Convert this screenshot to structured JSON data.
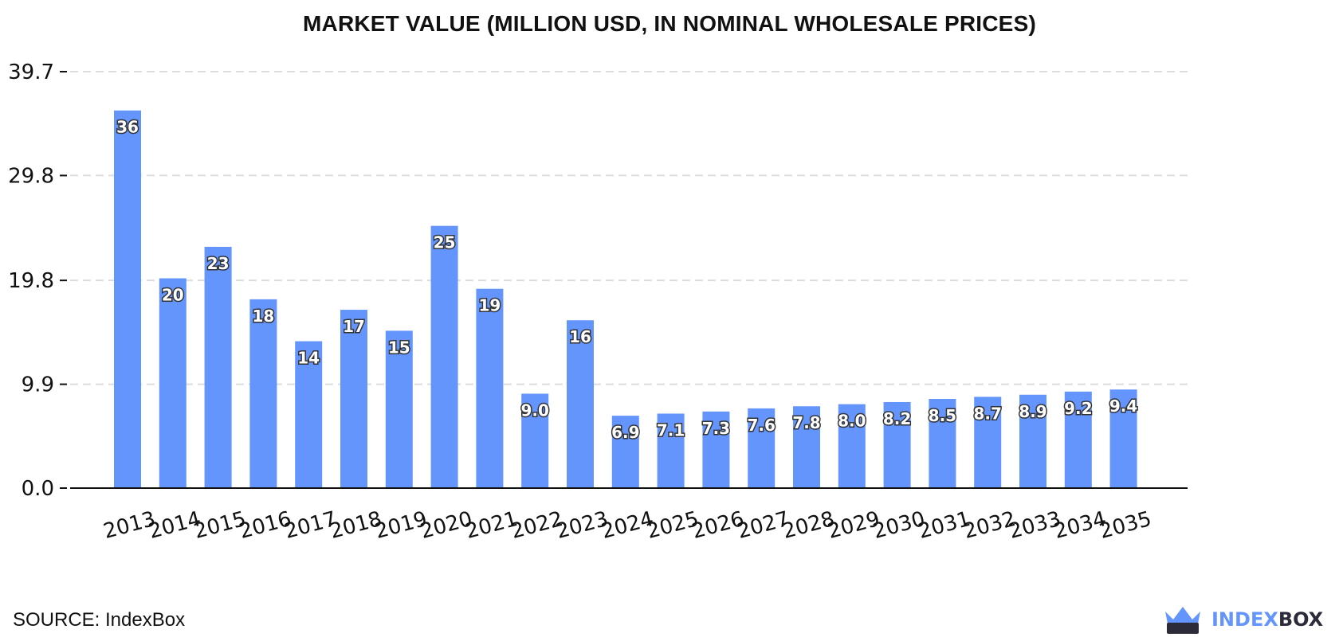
{
  "chart_data": {
    "type": "bar",
    "title": "MARKET VALUE (MILLION USD, IN NOMINAL WHOLESALE PRICES)",
    "xlabel": "",
    "ylabel": "",
    "categories": [
      "2013",
      "2014",
      "2015",
      "2016",
      "2017",
      "2018",
      "2019",
      "2020",
      "2021",
      "2022",
      "2023",
      "2024",
      "2025",
      "2026",
      "2027",
      "2028",
      "2029",
      "2030",
      "2031",
      "2032",
      "2033",
      "2034",
      "2035"
    ],
    "values": [
      36,
      20,
      23,
      18,
      14,
      17,
      15,
      25,
      19,
      9.0,
      16,
      6.9,
      7.1,
      7.3,
      7.6,
      7.8,
      8.0,
      8.2,
      8.5,
      8.7,
      8.9,
      9.2,
      9.4
    ],
    "value_labels": [
      "36",
      "20",
      "23",
      "18",
      "14",
      "17",
      "15",
      "25",
      "19",
      "9.0",
      "16",
      "6.9",
      "7.1",
      "7.3",
      "7.6",
      "7.8",
      "8.0",
      "8.2",
      "8.5",
      "8.7",
      "8.9",
      "9.2",
      "9.4"
    ],
    "yticks": [
      0.0,
      9.9,
      19.8,
      29.8,
      39.7
    ],
    "ytick_labels": [
      "0.0",
      "9.9",
      "19.8",
      "29.8",
      "39.7"
    ],
    "ylim": [
      0,
      39.7
    ],
    "grid": true,
    "legend": "none",
    "bar_color": "#6495fd",
    "grid_color": "#dddddd"
  },
  "footer": {
    "source": "SOURCE: IndexBox",
    "brand_part1": "INDEX",
    "brand_part2": "BOX",
    "brand_color1": "#6495fd",
    "brand_color2": "#2b2b3a",
    "logo_icon": "crown-box-icon"
  }
}
